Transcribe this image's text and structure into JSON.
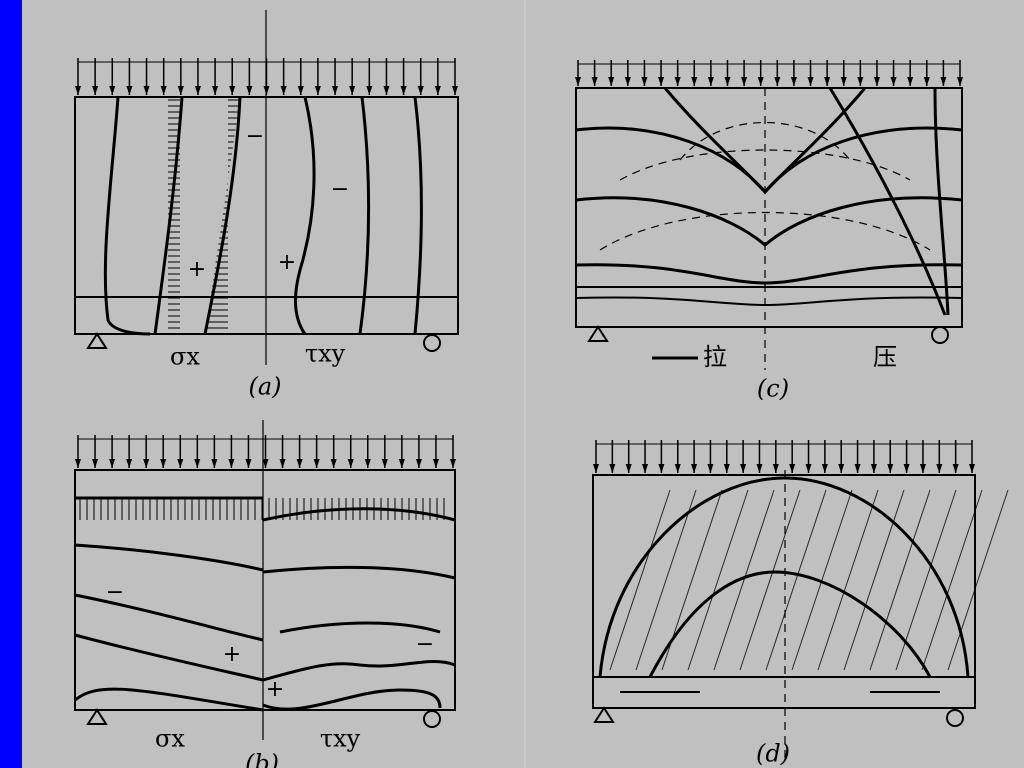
{
  "panels": [
    {
      "caption": "(a)",
      "sigma": "σx",
      "tau": "τxy",
      "signs": [
        "−",
        "−",
        "+",
        "+"
      ]
    },
    {
      "caption": "(b)",
      "sigma": "σx",
      "tau": "τxy",
      "signs": [
        "−",
        "+",
        "−",
        "+"
      ]
    },
    {
      "caption": "(c)",
      "tension": "拉",
      "compression": "压"
    },
    {
      "caption": "(d)"
    }
  ]
}
